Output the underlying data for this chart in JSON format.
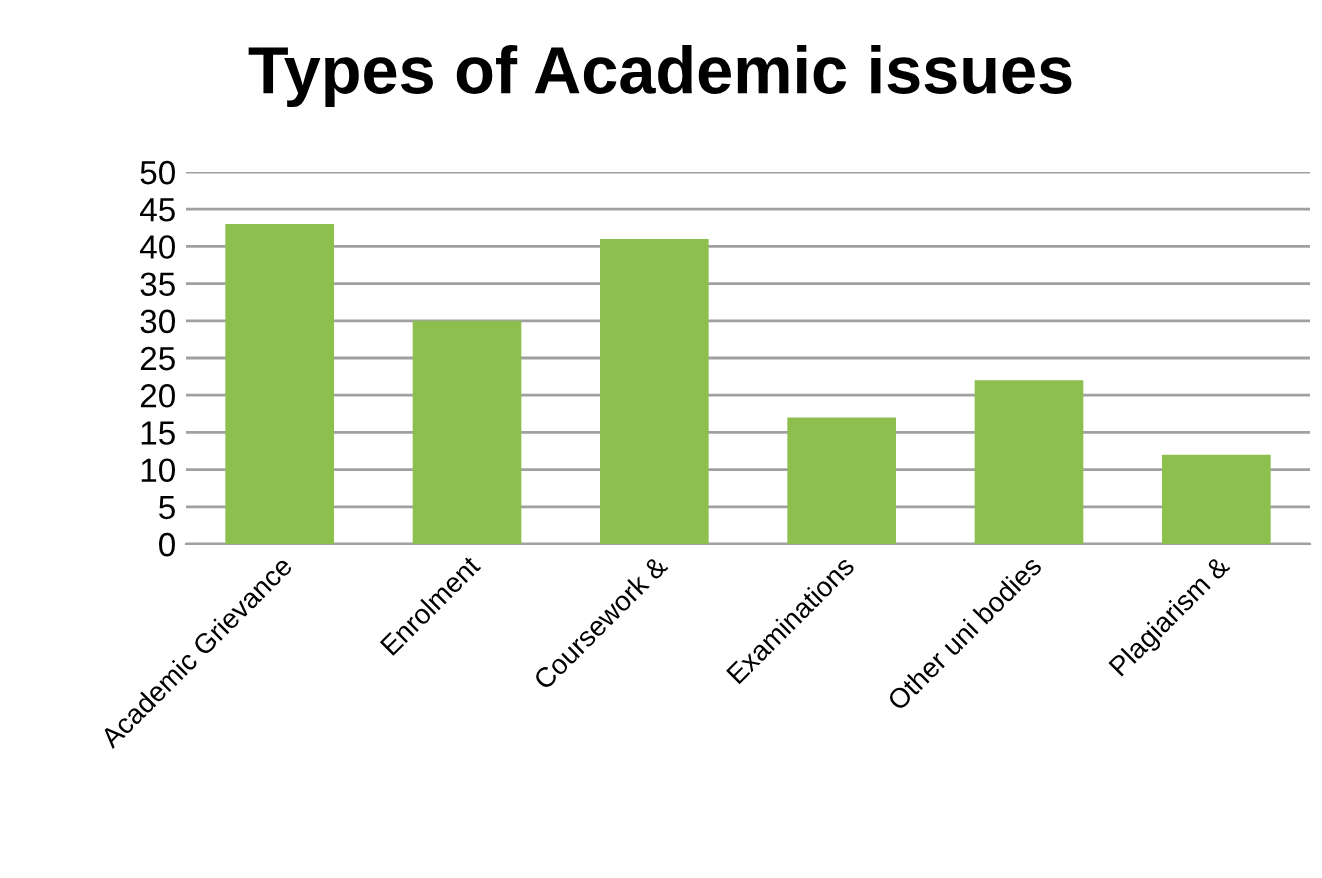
{
  "chart_data": {
    "type": "bar",
    "title": "Types of Academic issues",
    "categories": [
      "Academic Grievance",
      "Enrolment",
      "Coursework &",
      "Examinations",
      "Other uni bodies",
      "Plagiarism &"
    ],
    "values": [
      43,
      30,
      41,
      17,
      22,
      12
    ],
    "color": "#8dbf4f",
    "ylim": [
      0,
      50
    ],
    "yticks": [
      0,
      5,
      10,
      15,
      20,
      25,
      30,
      35,
      40,
      45,
      50
    ],
    "grid": "y",
    "legend": false
  }
}
